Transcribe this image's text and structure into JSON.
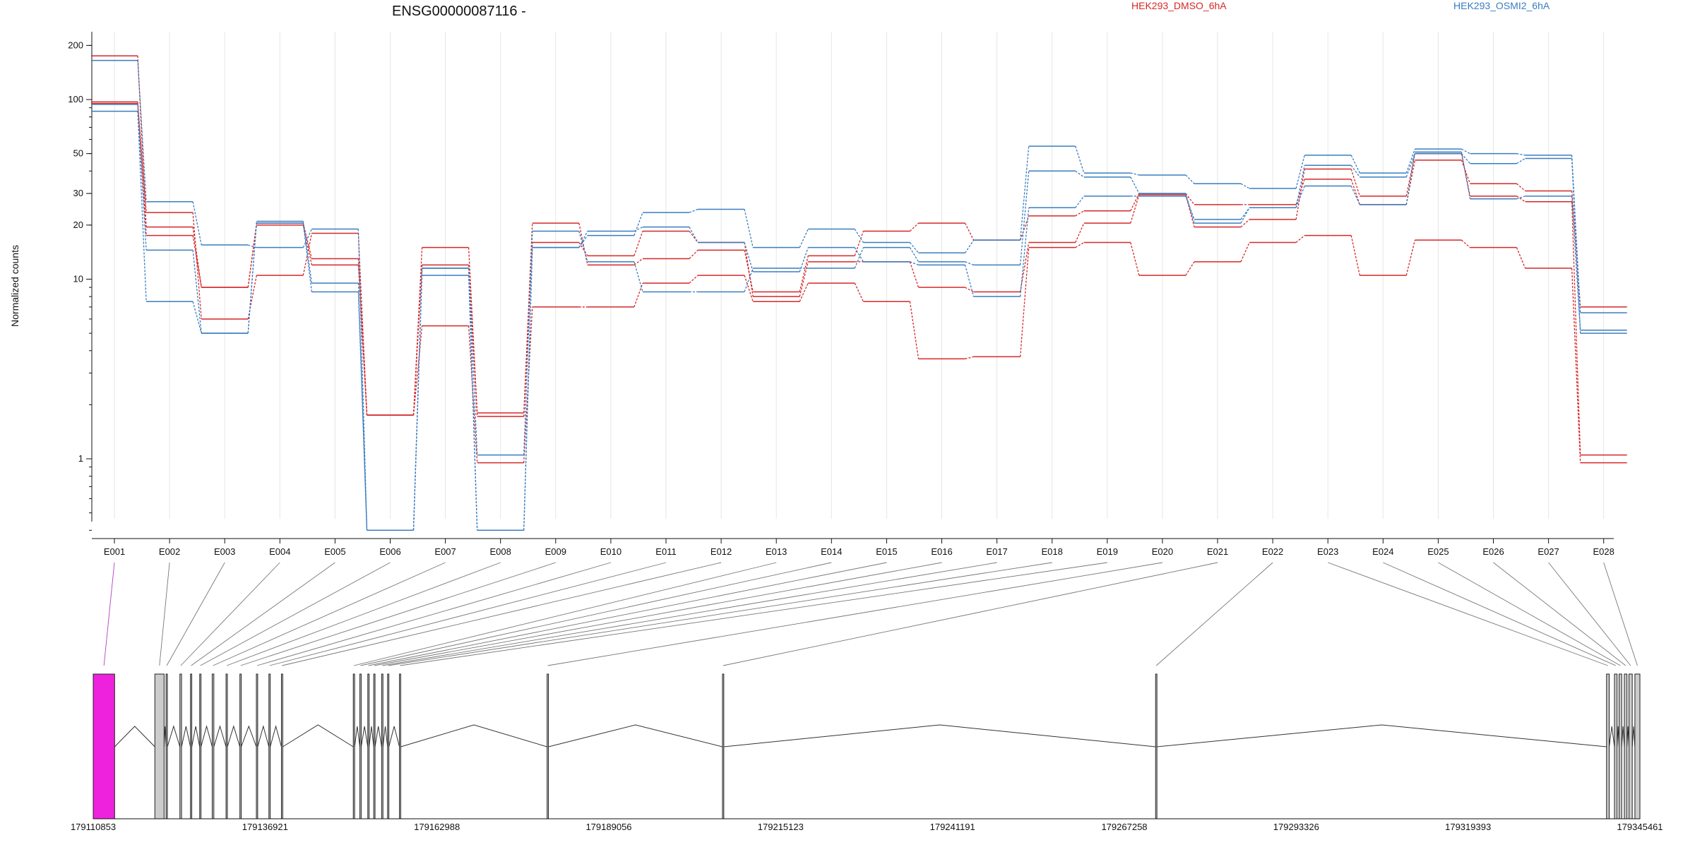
{
  "chart_data": {
    "type": "line",
    "title": "ENSG00000087116 -",
    "ylabel": "Normalized counts",
    "xlabel": "",
    "yscale": "log",
    "ylim": [
      0.38,
      220
    ],
    "y_ticks": [
      {
        "value": 1,
        "label": "1"
      },
      {
        "value": 10,
        "label": "10"
      },
      {
        "value": 20,
        "label": "20"
      },
      {
        "value": 30,
        "label": "30"
      },
      {
        "value": 50,
        "label": "50"
      },
      {
        "value": 100,
        "label": "100"
      },
      {
        "value": 200,
        "label": "200"
      }
    ],
    "grid": "vertical",
    "legend": [
      {
        "name": "HEK293_DMSO_6hA",
        "color": "#d62728",
        "placement": "top"
      },
      {
        "name": "HEK293_OSMI2_6hA",
        "color": "#3a7dc0",
        "placement": "top-right"
      }
    ],
    "categories": [
      "E001",
      "E002",
      "E003",
      "E004",
      "E005",
      "E006",
      "E007",
      "E008",
      "E009",
      "E010",
      "E011",
      "E012",
      "E013",
      "E014",
      "E015",
      "E016",
      "E017",
      "E018",
      "E019",
      "E020",
      "E021",
      "E022",
      "E023",
      "E024",
      "E025",
      "E026",
      "E027",
      "E028"
    ],
    "series": [
      {
        "group": "HEK293_DMSO_6hA",
        "color": "#d62728",
        "values": [
          175,
          19.5,
          9,
          20.5,
          13,
          1.75,
          15,
          1.8,
          20.5,
          12,
          13,
          14.5,
          8.5,
          13.5,
          18.5,
          20.5,
          16.5,
          22.5,
          24,
          30,
          26,
          26,
          36,
          26,
          46,
          34,
          31,
          7
        ]
      },
      {
        "group": "HEK293_DMSO_6hA",
        "color": "#d62728",
        "values": [
          97,
          17.5,
          9,
          20,
          12,
          1.75,
          12,
          1.72,
          16,
          13.5,
          18.5,
          16,
          8,
          12.5,
          12.5,
          9,
          8.5,
          16,
          20.5,
          29.5,
          19.5,
          21.5,
          41,
          29,
          50,
          29,
          27,
          1.05
        ]
      },
      {
        "group": "HEK293_DMSO_6hA",
        "color": "#d62728",
        "values": [
          95,
          23.5,
          6,
          10.5,
          18,
          1.75,
          5.5,
          0.95,
          7,
          7,
          9.5,
          10.5,
          7.5,
          9.5,
          7.5,
          3.6,
          3.7,
          15,
          16,
          10.5,
          12.5,
          16,
          17.5,
          10.5,
          16.5,
          15,
          11.5,
          0.95
        ]
      },
      {
        "group": "HEK293_OSMI2_6hA",
        "color": "#3a7dc0",
        "values": [
          165,
          27,
          15.5,
          15,
          19,
          0.4,
          10.5,
          0.4,
          15,
          17.5,
          23.5,
          24.5,
          15,
          19,
          16,
          14,
          16.5,
          55,
          39,
          38,
          34,
          32,
          49,
          39,
          53,
          50,
          49,
          6.5
        ]
      },
      {
        "group": "HEK293_OSMI2_6hA",
        "color": "#3a7dc0",
        "values": [
          94,
          14.5,
          5,
          21,
          9.5,
          0.4,
          11.5,
          1.05,
          18.5,
          12.5,
          8.5,
          8.5,
          11.5,
          11.5,
          15,
          12.5,
          12,
          40,
          37,
          30,
          20.5,
          25,
          43,
          37,
          50,
          44,
          47,
          5
        ]
      },
      {
        "group": "HEK293_OSMI2_6hA",
        "color": "#3a7dc0",
        "values": [
          86,
          7.5,
          5,
          20.5,
          8.5,
          0.4,
          11.5,
          0.4,
          15,
          18.5,
          19.5,
          16,
          11,
          15,
          12.5,
          12,
          8,
          25,
          29,
          29,
          21.5,
          25,
          33,
          26,
          51,
          28,
          29,
          5.2
        ]
      }
    ],
    "gene_model": {
      "start_label": "179110853",
      "end_label": "179345461",
      "axis_ticks": [
        "179110853",
        "179136921",
        "179162988",
        "179189056",
        "179215123",
        "179241191",
        "179267258",
        "179293326",
        "179319393",
        "179345461"
      ],
      "exons": [
        {
          "id": "E001",
          "start": 179110853,
          "end": 179114100,
          "highlight": true
        },
        {
          "id": "E002",
          "start": 179120200,
          "end": 179121600,
          "highlight": false
        },
        {
          "id": "E003",
          "start": 179121900,
          "end": 179122100,
          "highlight": false
        },
        {
          "id": "E004",
          "start": 179124000,
          "end": 179124250,
          "highlight": false
        },
        {
          "id": "E005",
          "start": 179125600,
          "end": 179125800,
          "highlight": false
        },
        {
          "id": "E006",
          "start": 179127000,
          "end": 179127200,
          "highlight": false
        },
        {
          "id": "E007",
          "start": 179128900,
          "end": 179129150,
          "highlight": false
        },
        {
          "id": "E008",
          "start": 179131000,
          "end": 179131200,
          "highlight": false
        },
        {
          "id": "E009",
          "start": 179133100,
          "end": 179133300,
          "highlight": false
        },
        {
          "id": "E010",
          "start": 179135600,
          "end": 179135800,
          "highlight": false
        },
        {
          "id": "E011",
          "start": 179137500,
          "end": 179137700,
          "highlight": false
        },
        {
          "id": "E012",
          "start": 179139400,
          "end": 179139600,
          "highlight": false
        },
        {
          "id": "E013",
          "start": 179150300,
          "end": 179150500,
          "highlight": false
        },
        {
          "id": "E014",
          "start": 179151300,
          "end": 179151500,
          "highlight": false
        },
        {
          "id": "E015",
          "start": 179152500,
          "end": 179152700,
          "highlight": false
        },
        {
          "id": "E016",
          "start": 179153400,
          "end": 179153600,
          "highlight": false
        },
        {
          "id": "E017",
          "start": 179154600,
          "end": 179154800,
          "highlight": false
        },
        {
          "id": "E018",
          "start": 179155500,
          "end": 179155700,
          "highlight": false
        },
        {
          "id": "E019",
          "start": 179157300,
          "end": 179157500,
          "highlight": false
        },
        {
          "id": "E020",
          "start": 179179700,
          "end": 179179900,
          "highlight": false
        },
        {
          "id": "E021",
          "start": 179206300,
          "end": 179206500,
          "highlight": false
        },
        {
          "id": "E022",
          "start": 179272000,
          "end": 179272200,
          "highlight": false
        },
        {
          "id": "E023",
          "start": 179340400,
          "end": 179340800,
          "highlight": false
        },
        {
          "id": "E024",
          "start": 179341600,
          "end": 179342000,
          "highlight": false
        },
        {
          "id": "E025",
          "start": 179342300,
          "end": 179342700,
          "highlight": false
        },
        {
          "id": "E026",
          "start": 179343100,
          "end": 179343500,
          "highlight": false
        },
        {
          "id": "E027",
          "start": 179343800,
          "end": 179344300,
          "highlight": false
        },
        {
          "id": "E028",
          "start": 179344700,
          "end": 179345461,
          "highlight": false
        }
      ]
    }
  },
  "colors": {
    "dmso": "#d62728",
    "osmi": "#3a7dc0",
    "highlight_exon": "#ee22dd",
    "exon_fill": "#cccccc",
    "highlight_link": "#b040c0"
  }
}
